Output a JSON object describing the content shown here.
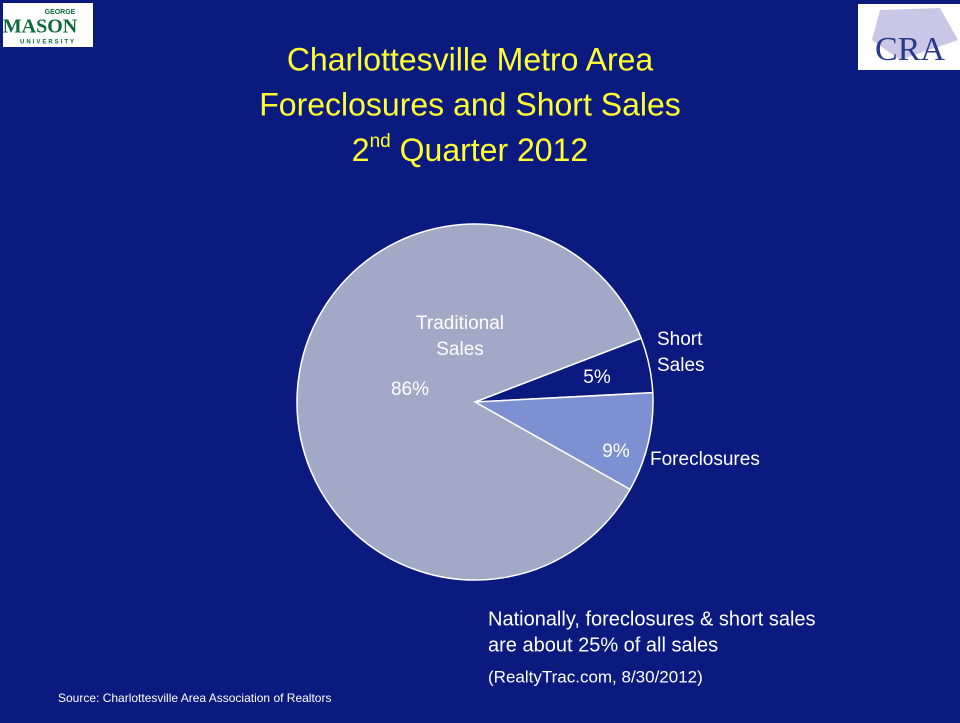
{
  "chart_data": {
    "type": "pie",
    "title": [
      "Charlottesville Metro Area",
      "Foreclosures and Short Sales"
    ],
    "subtitle_parts": [
      "2",
      "nd",
      " Quarter 2012"
    ],
    "categories": [
      "Short Sales",
      "Foreclosures",
      "Traditional Sales"
    ],
    "values": [
      5,
      9,
      86
    ],
    "value_labels": [
      "5%",
      "9%",
      "86%"
    ],
    "colors": [
      "#0b1a7e",
      "#7d90d2",
      "#a1a9c7"
    ],
    "annotation": [
      "Nationally, foreclosures & short sales",
      "are about 25% of all sales"
    ],
    "citation": "(RealtyTrac.com, 8/30/2012)",
    "source": "Source:  Charlottesville Area Association of Realtors"
  },
  "logos": {
    "left": {
      "top": "GEORGE",
      "main": "MASON",
      "bottom": "UNIVERSITY"
    },
    "right": "CRA"
  }
}
